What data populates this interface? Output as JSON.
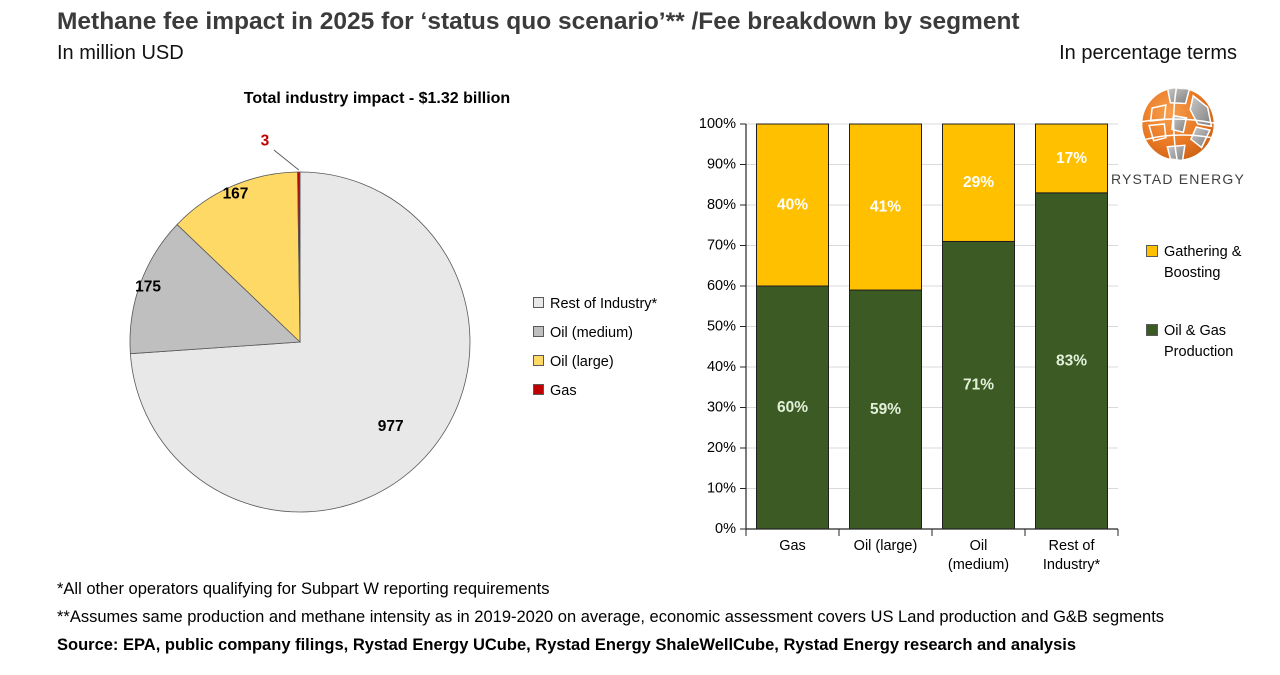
{
  "header": {
    "title": "Methane fee impact in 2025 for ‘status quo scenario’**  /Fee breakdown by segment",
    "subtitle_left": "In million USD",
    "subtitle_right": "In percentage terms"
  },
  "logo": {
    "text": "RYSTAD ENERGY"
  },
  "chart_data": [
    {
      "type": "pie",
      "title": "Total industry impact - $1.32 billion",
      "unit": "million USD",
      "total_label": "$1.32 billion",
      "slices": [
        {
          "label": "Rest of Industry*",
          "value": 977,
          "color": "#E8E8E8",
          "label_color": "#000000"
        },
        {
          "label": "Oil (medium)",
          "value": 175,
          "color": "#BFBFBF",
          "label_color": "#000000"
        },
        {
          "label": "Oil (large)",
          "value": 167,
          "color": "#FFD965",
          "label_color": "#000000"
        },
        {
          "label": "Gas",
          "value": 3,
          "color": "#C00000",
          "label_color": "#C00000"
        }
      ],
      "legend_position": "right",
      "legend_order": [
        "Rest of Industry*",
        "Oil (medium)",
        "Oil (large)",
        "Gas"
      ]
    },
    {
      "type": "bar",
      "stacked": true,
      "categories": [
        "Gas",
        "Oil (large)",
        "Oil\n(medium)",
        "Rest of\nIndustry*"
      ],
      "series": [
        {
          "name": "Oil & Gas Production",
          "color": "#3B5A24",
          "label_color": "#E2EFD9",
          "values": [
            60,
            59,
            71,
            83
          ]
        },
        {
          "name": "Gathering & Boosting",
          "color": "#FFC000",
          "label_color": "#FFFFFF",
          "values": [
            40,
            41,
            29,
            17
          ]
        }
      ],
      "value_suffix": "%",
      "ylim": [
        0,
        100
      ],
      "ytick_step": 10,
      "ytick_suffix": "%",
      "grid": true,
      "legend_position": "right"
    }
  ],
  "footnotes": [
    "*All other operators qualifying for Subpart W reporting requirements",
    "**Assumes same production and methane intensity as in 2019-2020 on average, economic assessment covers US Land production and G&B segments"
  ],
  "source": "Source: EPA, public company filings, Rystad Energy UCube, Rystad Energy ShaleWellCube, Rystad Energy research and analysis",
  "colors": {
    "grid": "#D9D9D9",
    "axis": "#262626",
    "pie_stroke": "#595959",
    "title": "#3b3b3b",
    "logo_orange": "#E87722",
    "logo_gray": "#A0A0A0"
  }
}
